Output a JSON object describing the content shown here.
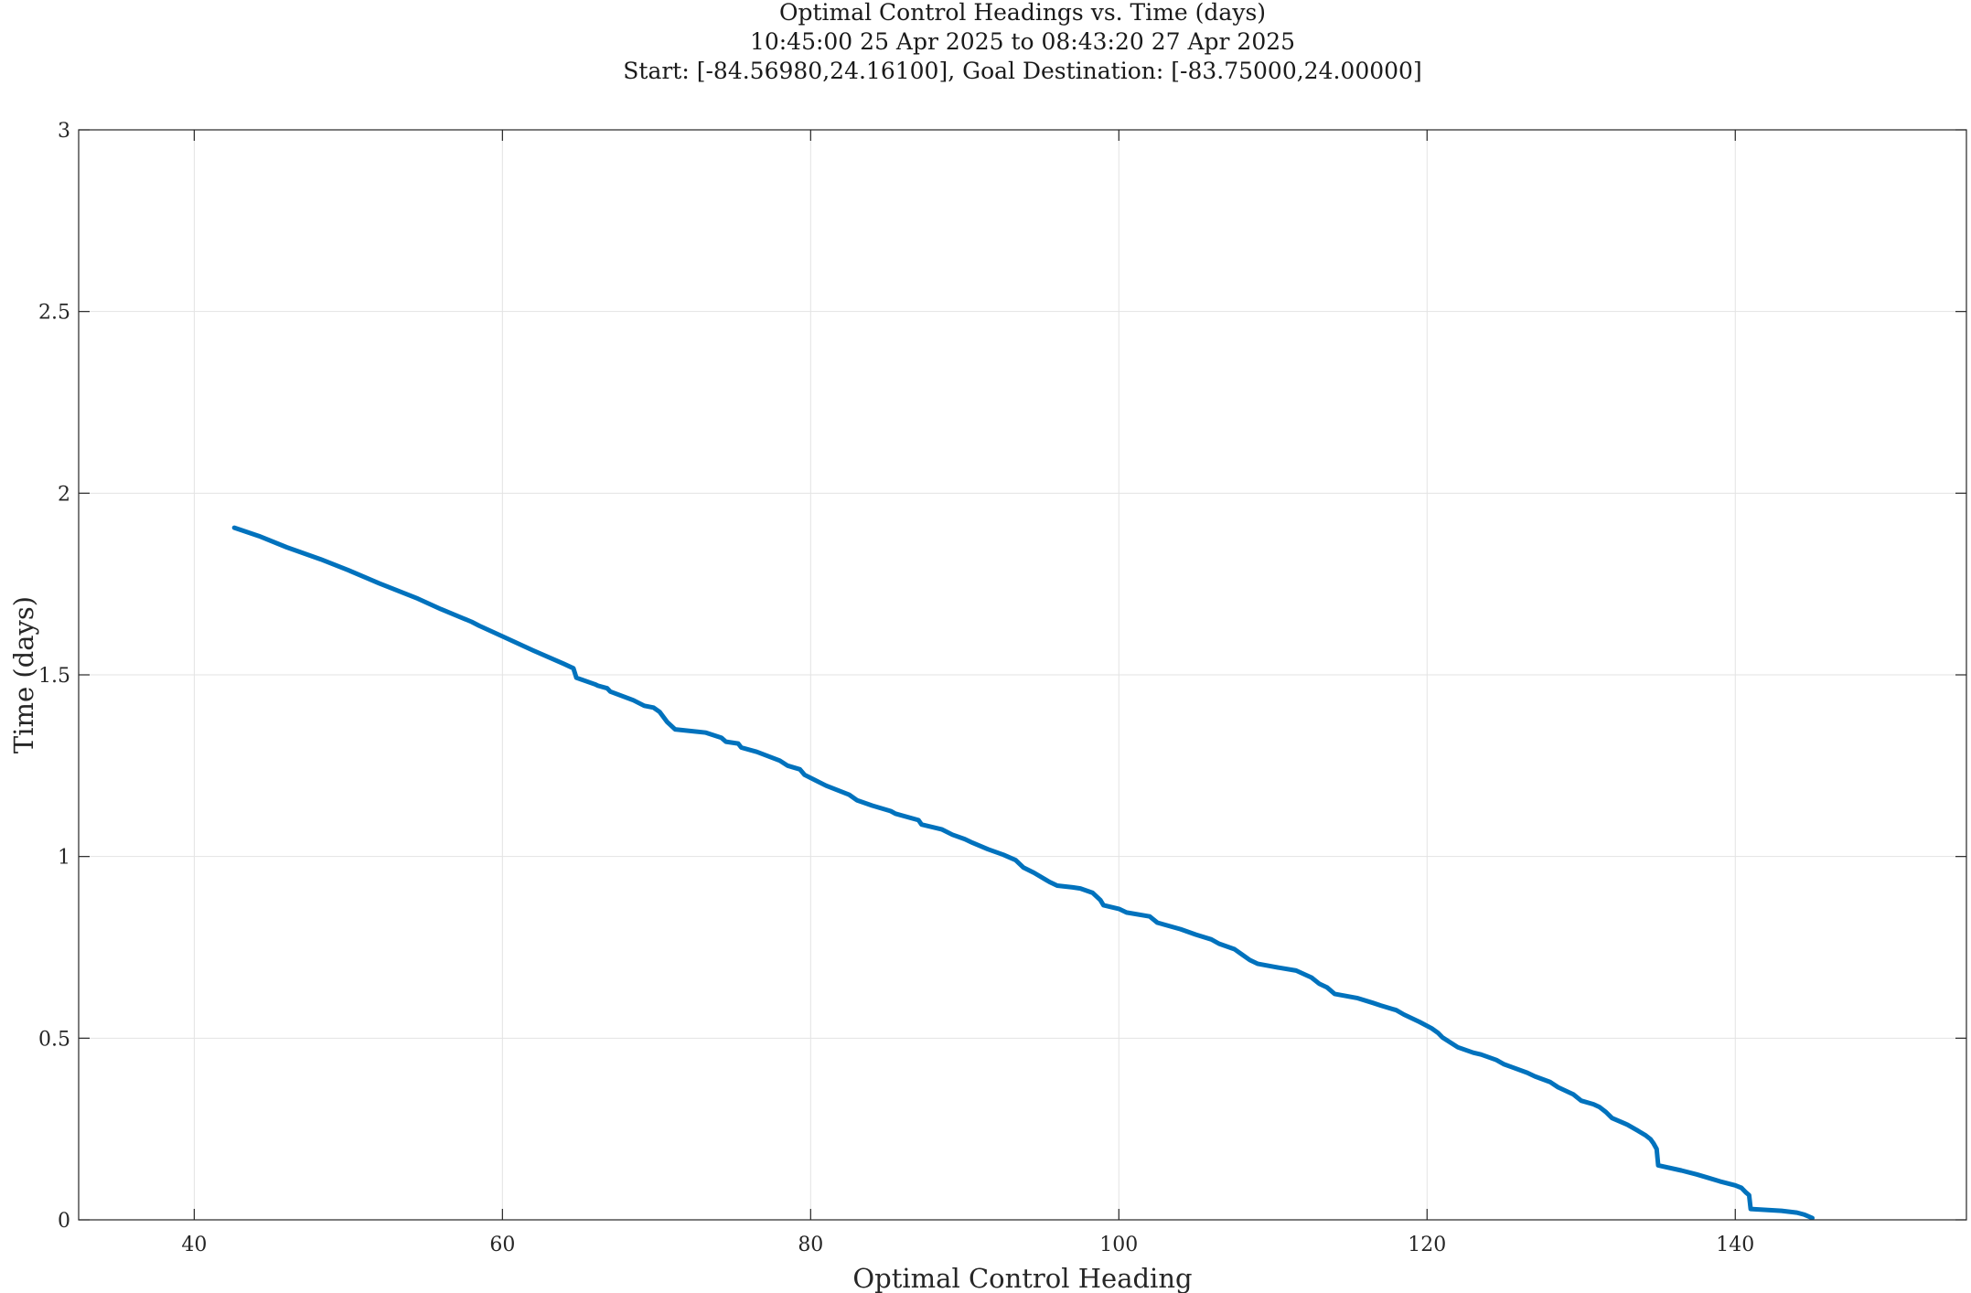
{
  "chart_data": {
    "type": "line",
    "title": [
      "Optimal Control Headings vs. Time (days)",
      "10:45:00 25 Apr 2025 to 08:43:20 27 Apr 2025",
      "Start: [-84.56980,24.16100], Goal Destination: [-83.75000,24.00000]"
    ],
    "xlabel": "Optimal Control Heading",
    "ylabel": "Time (days)",
    "xlim": [
      32.5,
      155
    ],
    "ylim": [
      0,
      3
    ],
    "xticks": [
      40,
      60,
      80,
      100,
      120,
      140
    ],
    "xtick_labels": [
      "40",
      "60",
      "80",
      "100",
      "120",
      "140"
    ],
    "yticks": [
      0,
      0.5,
      1,
      1.5,
      2,
      2.5,
      3
    ],
    "ytick_labels": [
      "0",
      "0.5",
      "1",
      "1.5",
      "2",
      "2.5",
      "3"
    ],
    "grid": true,
    "series": [
      {
        "color": "#0072bd",
        "x": [
          42.6,
          44.2,
          46.0,
          48.2,
          50.0,
          52.0,
          54.5,
          56.0,
          58.0,
          58.5,
          60.0,
          62.0,
          64.0,
          64.6,
          64.8,
          66.0,
          66.2,
          66.8,
          67.0,
          68.5,
          69.2,
          69.8,
          70.2,
          70.7,
          71.2,
          73.2,
          74.2,
          74.5,
          75.3,
          75.5,
          76.5,
          78.0,
          78.5,
          79.3,
          79.6,
          81.0,
          82.5,
          83.0,
          84.0,
          85.2,
          85.5,
          87.0,
          87.2,
          88.5,
          89.2,
          90.0,
          90.5,
          91.5,
          92.5,
          93.3,
          93.8,
          94.5,
          95.5,
          96.0,
          97.0,
          97.5,
          98.3,
          98.8,
          99.0,
          100.0,
          100.5,
          102.0,
          102.5,
          104.0,
          105.0,
          106.0,
          106.5,
          107.5,
          108.0,
          108.5,
          109.0,
          110.0,
          111.5,
          112.5,
          113.0,
          113.5,
          114.0,
          115.5,
          116.5,
          117.0,
          118.0,
          118.5,
          119.5,
          120.3,
          120.7,
          121.0,
          122.0,
          123.0,
          123.5,
          124.5,
          125.0,
          126.5,
          127.0,
          128.0,
          128.5,
          129.5,
          130.0,
          130.8,
          131.2,
          131.6,
          132.0,
          133.0,
          133.7,
          134.2,
          134.5,
          134.7,
          134.9,
          135.0,
          136.5,
          137.5,
          138.3,
          139.0,
          140.0,
          140.4,
          140.7,
          140.9,
          141.0,
          143.0,
          144.0,
          144.5,
          145.0
        ],
        "y": [
          1.905,
          1.882,
          1.851,
          1.818,
          1.788,
          1.752,
          1.71,
          1.681,
          1.646,
          1.635,
          1.606,
          1.567,
          1.53,
          1.518,
          1.492,
          1.474,
          1.47,
          1.463,
          1.454,
          1.43,
          1.415,
          1.41,
          1.398,
          1.37,
          1.35,
          1.341,
          1.327,
          1.316,
          1.311,
          1.3,
          1.288,
          1.264,
          1.25,
          1.24,
          1.225,
          1.195,
          1.17,
          1.155,
          1.14,
          1.125,
          1.118,
          1.1,
          1.088,
          1.075,
          1.06,
          1.048,
          1.038,
          1.02,
          1.005,
          0.99,
          0.97,
          0.955,
          0.93,
          0.92,
          0.915,
          0.912,
          0.9,
          0.88,
          0.866,
          0.856,
          0.846,
          0.835,
          0.818,
          0.8,
          0.785,
          0.772,
          0.76,
          0.745,
          0.73,
          0.715,
          0.705,
          0.697,
          0.686,
          0.667,
          0.65,
          0.64,
          0.622,
          0.61,
          0.597,
          0.59,
          0.577,
          0.565,
          0.545,
          0.527,
          0.515,
          0.502,
          0.475,
          0.46,
          0.455,
          0.44,
          0.428,
          0.405,
          0.395,
          0.379,
          0.365,
          0.345,
          0.328,
          0.318,
          0.31,
          0.297,
          0.28,
          0.262,
          0.245,
          0.232,
          0.222,
          0.21,
          0.195,
          0.15,
          0.136,
          0.125,
          0.115,
          0.106,
          0.095,
          0.088,
          0.075,
          0.068,
          0.03,
          0.025,
          0.02,
          0.014,
          0.005
        ]
      }
    ]
  }
}
